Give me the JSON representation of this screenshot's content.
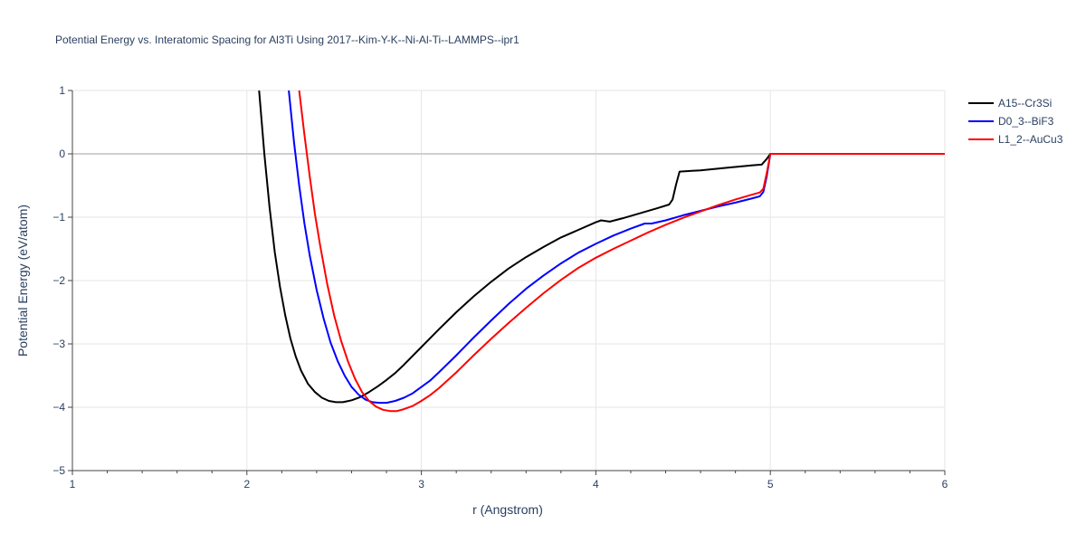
{
  "chart_data": {
    "type": "line",
    "title": "Potential Energy vs. Interatomic Spacing for Al3Ti Using 2017--Kim-Y-K--Ni-Al-Ti--LAMMPS--ipr1",
    "xlabel": "r (Angstrom)",
    "ylabel": "Potential Energy (eV/atom)",
    "xlim": [
      1,
      6
    ],
    "ylim": [
      -5,
      1
    ],
    "xticks": [
      1,
      2,
      3,
      4,
      5,
      6
    ],
    "xtick_labels": [
      "1",
      "2",
      "3",
      "4",
      "5",
      "6"
    ],
    "yticks": [
      1,
      0,
      -1,
      -2,
      -3,
      -4,
      -5
    ],
    "ytick_labels": [
      "1",
      "0",
      "−1",
      "−2",
      "−3",
      "−4",
      "−5"
    ],
    "grid": true,
    "legend_position": "top-right",
    "series": [
      {
        "name": "A15--Cr3Si",
        "color": "#000000",
        "x": [
          2.07,
          2.1,
          2.13,
          2.16,
          2.19,
          2.22,
          2.25,
          2.28,
          2.31,
          2.35,
          2.39,
          2.43,
          2.47,
          2.51,
          2.55,
          2.6,
          2.65,
          2.7,
          2.75,
          2.8,
          2.85,
          2.9,
          3.0,
          3.1,
          3.2,
          3.3,
          3.4,
          3.5,
          3.6,
          3.7,
          3.8,
          3.9,
          4.0,
          4.03,
          4.08,
          4.15,
          4.25,
          4.35,
          4.42,
          4.44,
          4.46,
          4.48,
          4.6,
          4.75,
          4.9,
          4.95,
          4.98,
          5.0,
          5.2,
          5.5,
          6.0
        ],
        "y": [
          1.0,
          0.0,
          -0.85,
          -1.55,
          -2.1,
          -2.55,
          -2.92,
          -3.2,
          -3.42,
          -3.63,
          -3.76,
          -3.85,
          -3.9,
          -3.92,
          -3.92,
          -3.89,
          -3.84,
          -3.76,
          -3.67,
          -3.57,
          -3.46,
          -3.33,
          -3.05,
          -2.77,
          -2.5,
          -2.25,
          -2.02,
          -1.81,
          -1.63,
          -1.47,
          -1.32,
          -1.2,
          -1.08,
          -1.05,
          -1.07,
          -1.02,
          -0.94,
          -0.86,
          -0.8,
          -0.72,
          -0.48,
          -0.28,
          -0.26,
          -0.22,
          -0.18,
          -0.17,
          -0.08,
          0.0,
          0.0,
          0.0,
          0.0
        ]
      },
      {
        "name": "D0_3--BiF3",
        "color": "#0000ff",
        "x": [
          2.24,
          2.27,
          2.3,
          2.33,
          2.36,
          2.4,
          2.44,
          2.48,
          2.52,
          2.56,
          2.6,
          2.64,
          2.68,
          2.72,
          2.76,
          2.8,
          2.85,
          2.9,
          2.95,
          3.0,
          3.05,
          3.1,
          3.2,
          3.3,
          3.4,
          3.5,
          3.6,
          3.7,
          3.8,
          3.9,
          4.0,
          4.1,
          4.2,
          4.28,
          4.32,
          4.4,
          4.5,
          4.6,
          4.7,
          4.8,
          4.9,
          4.94,
          4.96,
          4.98,
          5.0,
          5.2,
          5.5,
          6.0
        ],
        "y": [
          1.0,
          0.18,
          -0.5,
          -1.1,
          -1.6,
          -2.15,
          -2.6,
          -2.98,
          -3.27,
          -3.5,
          -3.68,
          -3.8,
          -3.88,
          -3.92,
          -3.93,
          -3.93,
          -3.9,
          -3.85,
          -3.78,
          -3.68,
          -3.58,
          -3.45,
          -3.18,
          -2.9,
          -2.63,
          -2.37,
          -2.13,
          -1.92,
          -1.73,
          -1.56,
          -1.42,
          -1.29,
          -1.18,
          -1.1,
          -1.1,
          -1.05,
          -0.97,
          -0.9,
          -0.83,
          -0.77,
          -0.7,
          -0.67,
          -0.6,
          -0.35,
          0.0,
          0.0,
          0.0,
          0.0
        ]
      },
      {
        "name": "L1_2--AuCu3",
        "color": "#ff0000",
        "x": [
          2.3,
          2.33,
          2.36,
          2.39,
          2.42,
          2.46,
          2.5,
          2.54,
          2.58,
          2.62,
          2.66,
          2.7,
          2.74,
          2.78,
          2.82,
          2.86,
          2.9,
          2.95,
          3.0,
          3.05,
          3.1,
          3.2,
          3.3,
          3.4,
          3.5,
          3.6,
          3.7,
          3.8,
          3.9,
          4.0,
          4.1,
          4.2,
          4.3,
          4.4,
          4.5,
          4.6,
          4.7,
          4.8,
          4.9,
          4.94,
          4.96,
          4.98,
          5.0,
          5.2,
          5.5,
          6.0
        ],
        "y": [
          1.0,
          0.3,
          -0.35,
          -0.95,
          -1.45,
          -2.05,
          -2.55,
          -2.95,
          -3.28,
          -3.55,
          -3.76,
          -3.9,
          -3.99,
          -4.04,
          -4.06,
          -4.06,
          -4.03,
          -3.98,
          -3.9,
          -3.81,
          -3.7,
          -3.45,
          -3.18,
          -2.92,
          -2.67,
          -2.43,
          -2.2,
          -1.99,
          -1.8,
          -1.64,
          -1.5,
          -1.37,
          -1.24,
          -1.12,
          -1.01,
          -0.91,
          -0.81,
          -0.72,
          -0.64,
          -0.61,
          -0.55,
          -0.3,
          0.0,
          0.0,
          0.0,
          0.0
        ]
      }
    ]
  }
}
